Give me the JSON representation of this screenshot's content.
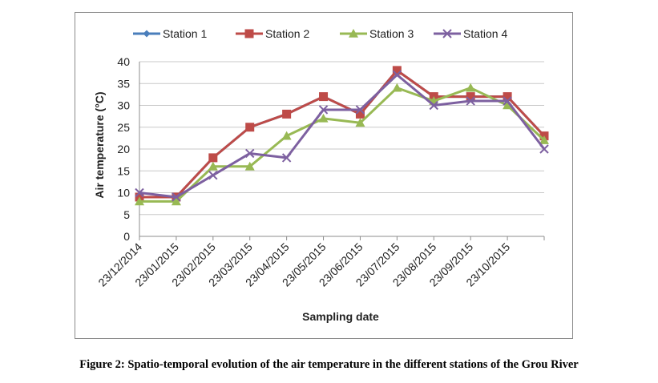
{
  "caption": "Figure 2: Spatio-temporal evolution of the air temperature in the different stations of the Grou River",
  "chart_data": {
    "type": "line",
    "title": "",
    "xlabel": "Sampling date",
    "ylabel": "Air temperature (°C)",
    "ylim": [
      0,
      40
    ],
    "yticks": [
      0,
      5,
      10,
      15,
      20,
      25,
      30,
      35,
      40
    ],
    "grid": "horizontal",
    "legend_position": "top",
    "x": [
      "23/12/2014",
      "23/01/2015",
      "23/02/2015",
      "23/03/2015",
      "23/04/2015",
      "23/05/2015",
      "23/06/2015",
      "23/07/2015",
      "23/08/2015",
      "23/09/2015",
      "23/10/2015",
      ""
    ],
    "series": [
      {
        "name": "Station 1",
        "color": "#4a7ebb",
        "marker": "diamond",
        "values": [
          9,
          9,
          18,
          25,
          28,
          32,
          28,
          38,
          32,
          32,
          32,
          23
        ]
      },
      {
        "name": "Station 2",
        "color": "#be4b48",
        "marker": "square",
        "values": [
          9,
          9,
          18,
          25,
          28,
          32,
          28,
          38,
          32,
          32,
          32,
          23
        ]
      },
      {
        "name": "Station 3",
        "color": "#98b954",
        "marker": "triangle",
        "values": [
          8,
          8,
          16,
          16,
          23,
          27,
          26,
          34,
          31,
          34,
          30,
          22
        ]
      },
      {
        "name": "Station 4",
        "color": "#7d60a0",
        "marker": "cross",
        "values": [
          10,
          9,
          14,
          19,
          18,
          29,
          29,
          37,
          30,
          31,
          31,
          20
        ]
      }
    ]
  }
}
